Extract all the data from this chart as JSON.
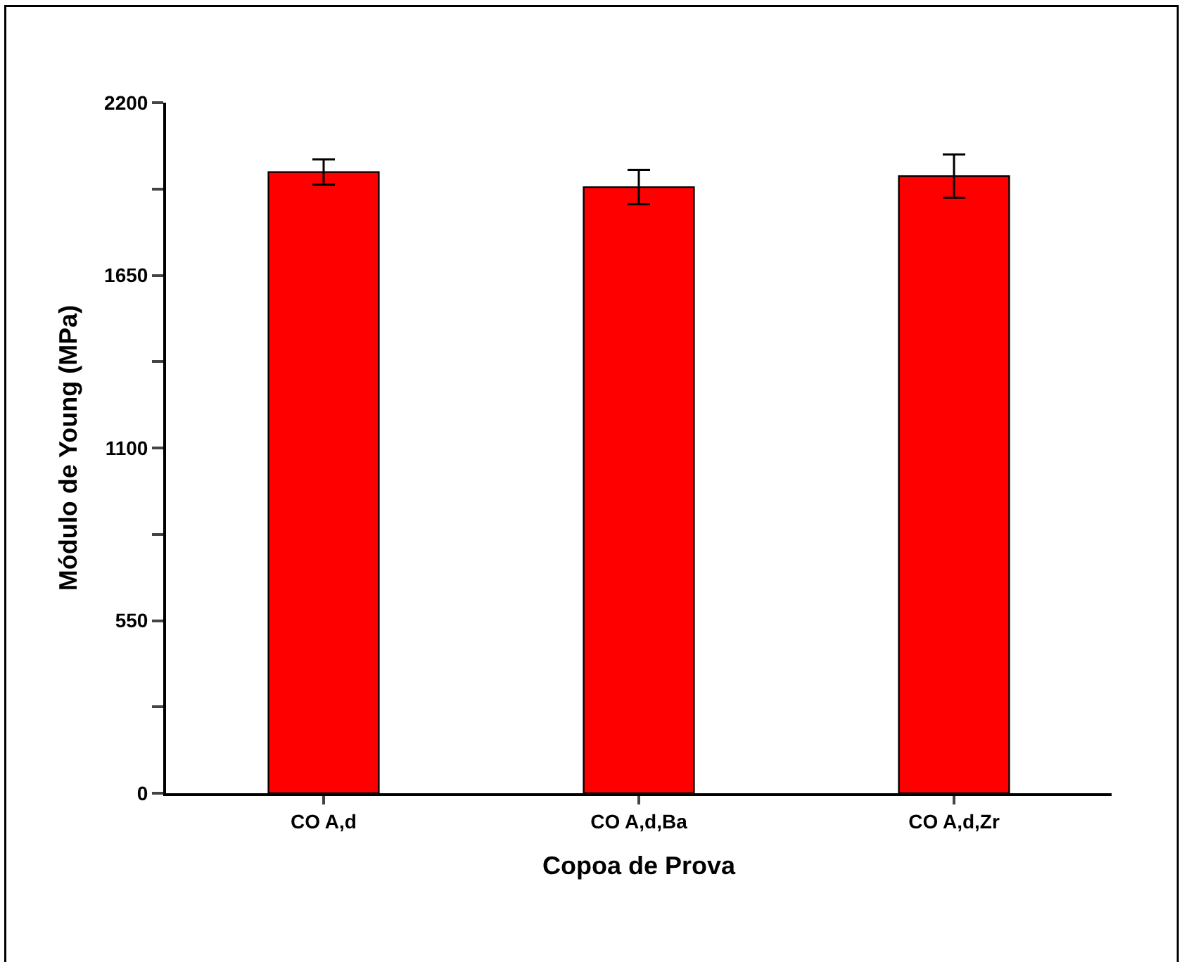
{
  "chart_data": {
    "type": "bar",
    "xlabel": "Copoa de Prova",
    "ylabel": "Módulo de Young (MPa)",
    "categories": [
      "CO A,d",
      "CO A,d,Ba",
      "CO A,d,Zr"
    ],
    "values": [
      1979,
      1931,
      1966
    ],
    "errors": [
      40,
      55,
      69
    ],
    "color": "#ff0000",
    "ylim": [
      0,
      2200
    ],
    "yticks": [
      0,
      {
        "value": 275,
        "label": null
      },
      550,
      {
        "value": 825,
        "label": null
      },
      1100,
      {
        "value": 1375,
        "label": null
      },
      1650,
      {
        "value": 1925,
        "label": null
      },
      2200
    ],
    "grid": false
  }
}
